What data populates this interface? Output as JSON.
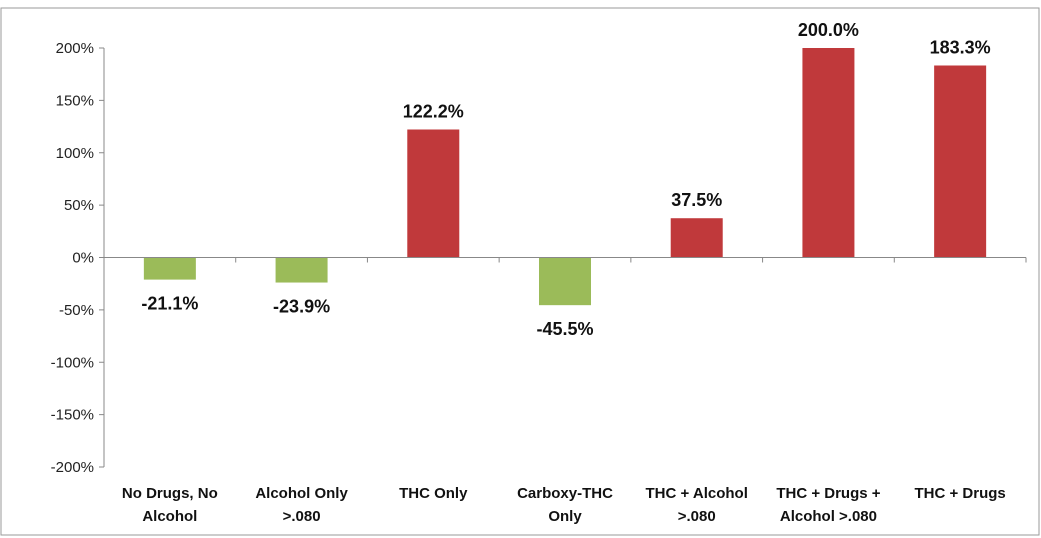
{
  "chart_data": {
    "type": "bar",
    "categories": [
      [
        "No Drugs, No",
        "Alcohol"
      ],
      [
        "Alcohol Only",
        ">.080"
      ],
      [
        "THC Only"
      ],
      [
        "Carboxy-THC",
        "Only"
      ],
      [
        "THC + Alcohol",
        ">.080"
      ],
      [
        "THC + Drugs +",
        "Alcohol >.080"
      ],
      [
        "THC + Drugs"
      ]
    ],
    "values": [
      -21.1,
      -23.9,
      122.2,
      -45.5,
      37.5,
      200.0,
      183.3
    ],
    "data_labels": [
      "-21.1%",
      "-23.9%",
      "122.2%",
      "-45.5%",
      "37.5%",
      "200.0%",
      "183.3%"
    ],
    "ylim": [
      -200,
      200
    ],
    "yticks": [
      200,
      150,
      100,
      50,
      0,
      -50,
      -100,
      -150,
      -200
    ],
    "ytick_labels": [
      "200%",
      "150%",
      "100%",
      "50%",
      "0%",
      "-50%",
      "-100%",
      "-150%",
      "-200%"
    ],
    "grid": false,
    "legend": "none",
    "colors": {
      "positive": "#c0393b",
      "negative": "#9bbb59",
      "axis": "#888888"
    }
  }
}
